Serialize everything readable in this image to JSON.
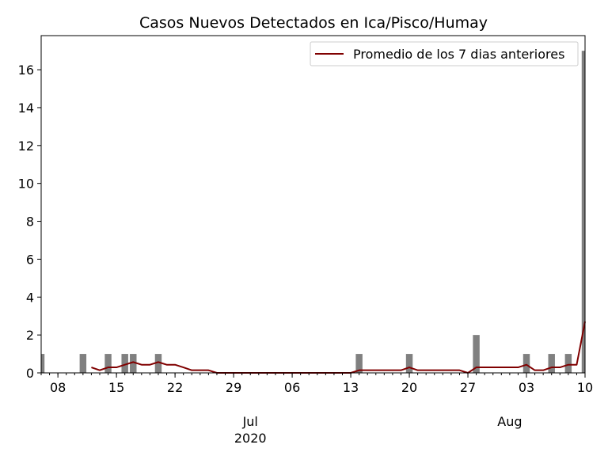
{
  "chart_data": {
    "type": "bar",
    "title": "Casos Nuevos Detectados en Ica/Pisco/Humay",
    "xlabel": "",
    "ylabel": "",
    "x_range": [
      "2020-06-06",
      "2020-08-10"
    ],
    "ylim": [
      0,
      17.8
    ],
    "y_ticks": [
      0,
      2,
      4,
      6,
      8,
      10,
      12,
      14,
      16
    ],
    "x_tick_labels": [
      {
        "date": "2020-06-08",
        "label": "08"
      },
      {
        "date": "2020-06-15",
        "label": "15"
      },
      {
        "date": "2020-06-22",
        "label": "22"
      },
      {
        "date": "2020-06-29",
        "label": "29"
      },
      {
        "date": "2020-07-06",
        "label": "06"
      },
      {
        "date": "2020-07-13",
        "label": "13"
      },
      {
        "date": "2020-07-20",
        "label": "20"
      },
      {
        "date": "2020-07-27",
        "label": "27"
      },
      {
        "date": "2020-08-03",
        "label": "03"
      },
      {
        "date": "2020-08-10",
        "label": "10"
      }
    ],
    "month_labels": [
      {
        "date": "2020-07-01",
        "label": "Jul"
      },
      {
        "date": "2020-08-01",
        "label": "Aug"
      }
    ],
    "year_label": {
      "date": "2020-07-01",
      "label": "2020"
    },
    "bar_color": "#808080",
    "bars": [
      {
        "date": "2020-06-06",
        "value": 1
      },
      {
        "date": "2020-06-11",
        "value": 1
      },
      {
        "date": "2020-06-14",
        "value": 1
      },
      {
        "date": "2020-06-16",
        "value": 1
      },
      {
        "date": "2020-06-17",
        "value": 1
      },
      {
        "date": "2020-06-20",
        "value": 1
      },
      {
        "date": "2020-07-14",
        "value": 1
      },
      {
        "date": "2020-07-20",
        "value": 1
      },
      {
        "date": "2020-07-28",
        "value": 2
      },
      {
        "date": "2020-08-03",
        "value": 1
      },
      {
        "date": "2020-08-06",
        "value": 1
      },
      {
        "date": "2020-08-08",
        "value": 1
      },
      {
        "date": "2020-08-10",
        "value": 17
      }
    ],
    "series": [
      {
        "name": "Promedio de los 7 dias anteriores",
        "color": "#800000",
        "points": [
          {
            "date": "2020-06-12",
            "value": 0.29
          },
          {
            "date": "2020-06-13",
            "value": 0.14
          },
          {
            "date": "2020-06-14",
            "value": 0.29
          },
          {
            "date": "2020-06-15",
            "value": 0.29
          },
          {
            "date": "2020-06-16",
            "value": 0.43
          },
          {
            "date": "2020-06-17",
            "value": 0.57
          },
          {
            "date": "2020-06-18",
            "value": 0.43
          },
          {
            "date": "2020-06-19",
            "value": 0.43
          },
          {
            "date": "2020-06-20",
            "value": 0.57
          },
          {
            "date": "2020-06-21",
            "value": 0.43
          },
          {
            "date": "2020-06-22",
            "value": 0.43
          },
          {
            "date": "2020-06-23",
            "value": 0.29
          },
          {
            "date": "2020-06-24",
            "value": 0.14
          },
          {
            "date": "2020-06-25",
            "value": 0.14
          },
          {
            "date": "2020-06-26",
            "value": 0.14
          },
          {
            "date": "2020-06-27",
            "value": 0
          },
          {
            "date": "2020-06-28",
            "value": 0
          },
          {
            "date": "2020-07-13",
            "value": 0
          },
          {
            "date": "2020-07-14",
            "value": 0.14
          },
          {
            "date": "2020-07-15",
            "value": 0.14
          },
          {
            "date": "2020-07-19",
            "value": 0.14
          },
          {
            "date": "2020-07-20",
            "value": 0.29
          },
          {
            "date": "2020-07-21",
            "value": 0.14
          },
          {
            "date": "2020-07-26",
            "value": 0.14
          },
          {
            "date": "2020-07-27",
            "value": 0
          },
          {
            "date": "2020-07-28",
            "value": 0.29
          },
          {
            "date": "2020-08-02",
            "value": 0.29
          },
          {
            "date": "2020-08-03",
            "value": 0.43
          },
          {
            "date": "2020-08-04",
            "value": 0.14
          },
          {
            "date": "2020-08-05",
            "value": 0.14
          },
          {
            "date": "2020-08-06",
            "value": 0.29
          },
          {
            "date": "2020-08-07",
            "value": 0.29
          },
          {
            "date": "2020-08-08",
            "value": 0.43
          },
          {
            "date": "2020-08-09",
            "value": 0.43
          },
          {
            "date": "2020-08-10",
            "value": 2.71
          }
        ]
      }
    ],
    "legend": {
      "position": "top-right",
      "label": "Promedio de los 7 dias anteriores"
    },
    "grid": false
  }
}
